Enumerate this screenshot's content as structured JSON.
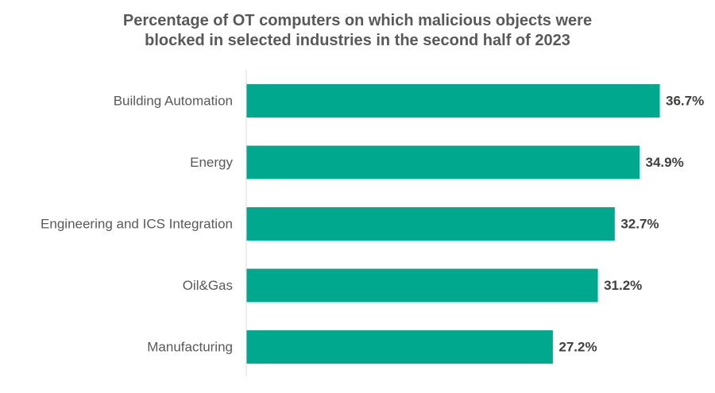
{
  "chart_data": {
    "type": "bar",
    "orientation": "horizontal",
    "title": [
      "Percentage of OT computers on which malicious objects were",
      "blocked in selected industries in the second half of 2023"
    ],
    "categories": [
      "Building Automation",
      "Energy",
      "Engineering and ICS Integration",
      "Oil&Gas",
      "Manufacturing"
    ],
    "values": [
      36.7,
      34.9,
      32.7,
      31.2,
      27.2
    ],
    "value_labels": [
      "36.7%",
      "34.9%",
      "32.7%",
      "31.2%",
      "27.2%"
    ],
    "xlabel": "",
    "ylabel": "",
    "xlim": [
      0,
      40
    ],
    "grid": false,
    "legend": "none"
  },
  "colors": {
    "bar": "#00a88e",
    "axis": "#d9d9d9"
  }
}
